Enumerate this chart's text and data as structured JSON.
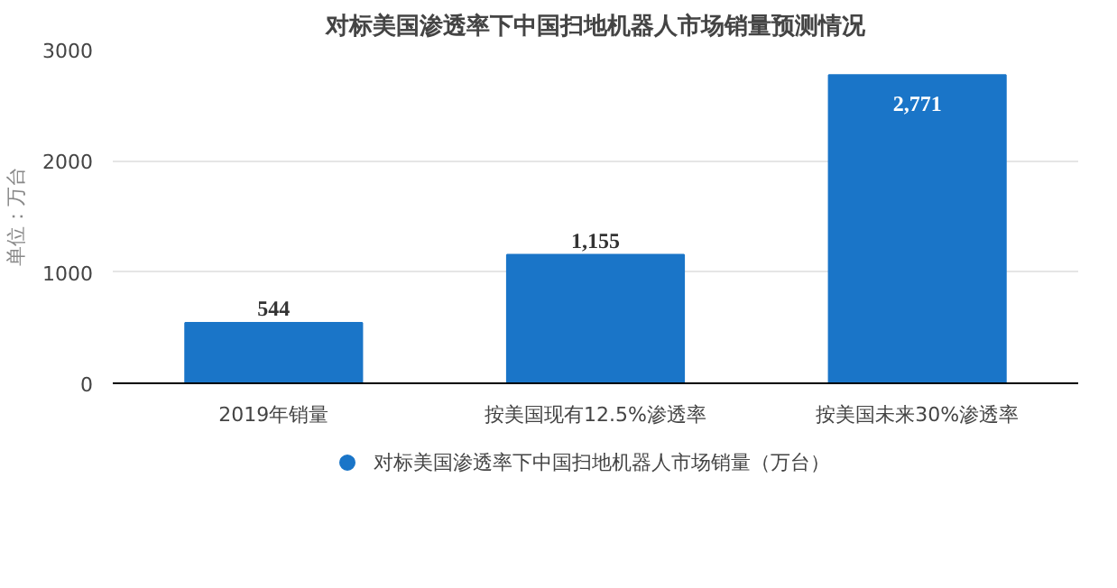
{
  "chart_data": {
    "type": "bar",
    "title": "对标美国渗透率下中国扫地机器人市场销量预测情况",
    "ylabel": "单位：万台",
    "categories": [
      "2019年销量",
      "按美国现有12.5%渗透率",
      "按美国未来30%渗透率"
    ],
    "series": [
      {
        "name": "对标美国渗透率下中国扫地机器人市场销量（万台）",
        "color": "#1a75c8",
        "values": [
          544,
          1155,
          2771
        ],
        "value_labels": [
          "544",
          "1,155",
          "2,771"
        ]
      }
    ],
    "ylim": [
      0,
      3000
    ],
    "yticks": [
      0,
      1000,
      2000,
      3000
    ],
    "grid": "y",
    "legend": "bottom"
  }
}
